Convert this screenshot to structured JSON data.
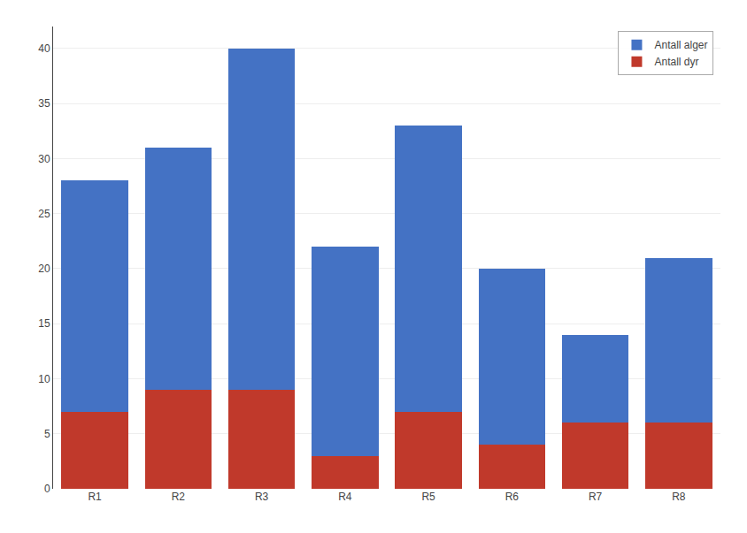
{
  "chart_data": {
    "type": "bar",
    "stacked": true,
    "categories": [
      "R1",
      "R2",
      "R3",
      "R4",
      "R5",
      "R6",
      "R7",
      "R8"
    ],
    "series": [
      {
        "name": "Antall dyr",
        "color": "#C0392B",
        "values": [
          7,
          9,
          9,
          3,
          7,
          4,
          6,
          6
        ]
      },
      {
        "name": "Antall alger",
        "color": "#4472C4",
        "values": [
          21,
          22,
          31,
          19,
          26,
          16,
          8,
          15
        ]
      }
    ],
    "ylim": [
      0,
      42
    ],
    "yticks": [
      0,
      5,
      10,
      15,
      20,
      25,
      30,
      35,
      40
    ],
    "grid": true,
    "legend": "upper right"
  }
}
